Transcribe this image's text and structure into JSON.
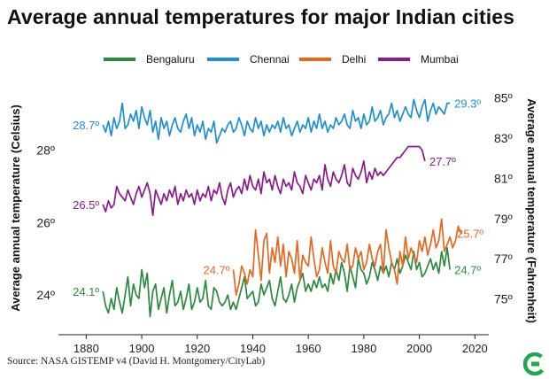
{
  "chart_data": {
    "type": "line",
    "title": "Average annual temperatures for major Indian cities",
    "xlabel": "",
    "ylabel": "Average annual temperature (Celsius)",
    "ylabel_right": "Average annual temperature (Fahrenheit)",
    "xlim": [
      1870,
      2025
    ],
    "ylim": [
      22.9,
      29.9
    ],
    "x_ticks": [
      1880,
      1900,
      1920,
      1940,
      1960,
      1980,
      2000,
      2020
    ],
    "x_tick_labels": [
      "1880",
      "1900",
      "1920",
      "1940",
      "1960",
      "1980",
      "2000",
      "2020"
    ],
    "y_ticks_left": [
      24,
      26,
      28
    ],
    "y_tick_labels_left": [
      "24º",
      "26º",
      "28º"
    ],
    "y_ticks_right_f": [
      75,
      77,
      79,
      81,
      83,
      85
    ],
    "y_tick_labels_right": [
      "75º",
      "77º",
      "79º",
      "81º",
      "83º",
      "85º"
    ],
    "legend_position": "top",
    "series": [
      {
        "name": "Bengaluru",
        "color": "#2a8a3e",
        "start_label": "24.1º",
        "end_label": "24.7º",
        "start_year": 1886,
        "values": [
          24.1,
          23.7,
          23.5,
          23.9,
          23.6,
          24.2,
          23.8,
          23.5,
          24.0,
          24.5,
          23.7,
          24.3,
          24.0,
          23.9,
          24.7,
          24.2,
          24.6,
          23.4,
          24.1,
          24.3,
          23.6,
          23.9,
          24.2,
          23.5,
          24.0,
          24.4,
          23.7,
          23.8,
          24.1,
          23.6,
          23.9,
          24.3,
          23.6,
          23.8,
          24.2,
          23.8,
          23.9,
          24.4,
          23.7,
          23.6,
          24.2,
          24.1,
          23.8,
          23.7,
          23.8,
          24.0,
          23.6,
          23.8,
          23.6,
          23.9,
          24.2,
          24.5,
          23.9,
          24.0,
          24.1,
          23.7,
          23.8,
          24.3,
          24.0,
          24.2,
          24.4,
          23.9,
          23.7,
          24.1,
          24.5,
          23.9,
          23.8,
          24.0,
          24.3,
          23.8,
          24.2,
          24.4,
          24.6,
          24.1,
          24.3,
          24.1,
          24.4,
          24.2,
          24.5,
          24.2,
          24.3,
          24.1,
          24.6,
          24.3,
          24.7,
          24.4,
          24.9,
          24.6,
          24.1,
          24.8,
          24.5,
          24.2,
          25.0,
          24.7,
          24.6,
          24.3,
          24.5,
          24.9,
          24.7,
          24.4,
          24.8,
          24.6,
          24.8,
          24.5,
          24.9,
          24.7,
          25.0,
          24.6,
          24.8,
          25.1,
          24.9,
          24.7,
          25.2,
          24.7,
          24.9,
          24.5,
          24.6,
          24.8,
          25.0,
          24.7,
          24.9,
          24.6,
          25.2,
          24.8,
          25.3,
          24.7
        ]
      },
      {
        "name": "Chennai",
        "color": "#1e8fd0",
        "start_label": "28.7º",
        "end_label": "29.3º",
        "start_year": 1886,
        "values": [
          28.7,
          28.5,
          28.8,
          28.4,
          28.9,
          28.6,
          28.8,
          29.3,
          28.6,
          28.7,
          29.0,
          28.8,
          29.1,
          28.6,
          29.2,
          28.9,
          28.7,
          29.1,
          28.5,
          28.8,
          28.3,
          28.9,
          28.6,
          28.8,
          28.4,
          28.7,
          28.9,
          28.6,
          28.5,
          28.8,
          29.0,
          28.6,
          28.9,
          28.4,
          28.7,
          28.5,
          28.8,
          28.3,
          28.6,
          28.5,
          28.8,
          28.2,
          28.4,
          28.6,
          28.5,
          28.7,
          28.8,
          28.5,
          28.6,
          28.9,
          28.7,
          28.4,
          28.8,
          28.6,
          28.5,
          28.9,
          28.6,
          28.8,
          28.4,
          28.7,
          28.5,
          28.7,
          28.6,
          28.8,
          28.5,
          28.9,
          28.6,
          28.7,
          28.4,
          28.6,
          28.8,
          28.5,
          28.7,
          28.6,
          28.9,
          28.5,
          28.8,
          28.6,
          29.0,
          28.6,
          28.8,
          28.5,
          28.7,
          28.6,
          28.9,
          28.7,
          28.8,
          29.0,
          28.7,
          28.6,
          29.1,
          28.8,
          28.9,
          28.6,
          29.0,
          28.7,
          28.8,
          29.2,
          28.8,
          28.9,
          29.1,
          28.7,
          28.9,
          29.0,
          29.3,
          28.9,
          29.1,
          28.8,
          29.0,
          29.2,
          29.0,
          28.9,
          29.4,
          29.1,
          28.9,
          29.2,
          29.4,
          28.8,
          29.1,
          29.3,
          29.0,
          29.2,
          29.1,
          29.0,
          29.3,
          29.3
        ]
      },
      {
        "name": "Delhi",
        "color": "#e8661e",
        "start_label": "24.7º",
        "end_label": "25.7º",
        "start_year": 1933,
        "values": [
          24.7,
          24.0,
          24.3,
          24.8,
          24.6,
          24.3,
          24.7,
          24.5,
          25.8,
          25.1,
          24.4,
          25.5,
          25.7,
          24.6,
          25.3,
          24.9,
          25.6,
          24.8,
          25.4,
          24.5,
          25.2,
          25.0,
          24.6,
          25.5,
          24.4,
          25.1,
          24.9,
          24.8,
          25.6,
          25.0,
          24.5,
          24.7,
          25.3,
          24.9,
          24.6,
          25.5,
          24.8,
          24.6,
          25.2,
          25.0,
          24.9,
          25.4,
          24.7,
          24.8,
          25.3,
          25.0,
          25.2,
          24.7,
          24.9,
          25.4,
          25.0,
          24.8,
          25.2,
          25.4,
          24.6,
          25.8,
          25.3,
          24.9,
          24.7,
          24.3,
          25.2,
          24.8,
          25.6,
          25.0,
          25.3,
          25.1,
          24.9,
          25.5,
          25.2,
          25.6,
          25.1,
          25.4,
          25.8,
          25.3,
          25.5,
          26.1,
          25.2,
          25.4,
          25.6,
          25.3,
          25.5,
          25.9,
          25.7
        ]
      },
      {
        "name": "Mumbai",
        "color": "#8b1a8b",
        "start_label": "26.5º",
        "end_label": "27.7º",
        "start_year": 1886,
        "values": [
          26.5,
          26.3,
          26.6,
          26.4,
          26.5,
          27.0,
          26.8,
          26.7,
          26.6,
          26.9,
          26.7,
          26.5,
          26.8,
          27.0,
          26.7,
          26.9,
          27.1,
          26.8,
          26.2,
          26.9,
          26.7,
          26.5,
          26.8,
          26.6,
          26.9,
          26.7,
          27.0,
          26.5,
          26.8,
          26.6,
          26.9,
          26.7,
          26.8,
          26.5,
          26.9,
          26.6,
          26.8,
          26.7,
          27.0,
          26.6,
          26.9,
          26.8,
          27.1,
          26.7,
          26.5,
          26.9,
          27.1,
          26.7,
          26.9,
          27.0,
          26.8,
          27.2,
          26.9,
          27.3,
          27.0,
          26.9,
          27.2,
          26.8,
          27.4,
          27.1,
          27.2,
          26.9,
          27.3,
          27.0,
          26.8,
          27.2,
          27.0,
          27.1,
          26.9,
          27.4,
          27.1,
          27.0,
          26.8,
          27.3,
          27.1,
          26.9,
          27.2,
          27.1,
          27.3,
          26.9,
          27.6,
          27.2,
          27.0,
          27.4,
          27.2,
          27.1,
          27.3,
          27.6,
          27.1,
          27.0,
          27.5,
          27.3,
          27.2,
          27.4,
          27.7,
          27.1,
          27.4,
          27.2,
          27.5,
          27.3,
          27.4,
          27.3,
          27.4,
          27.5,
          27.6,
          27.7,
          27.8,
          27.8,
          27.9,
          28.0,
          28.1,
          28.1,
          28.1,
          28.1,
          28.1,
          28.0,
          27.7
        ]
      }
    ]
  },
  "legend_title_items": [
    "Bengaluru",
    "Chennai",
    "Delhi",
    "Mumbai"
  ],
  "source": "Source: NASA GISTEMP v4 (David H. Montgomery/CityLab)",
  "logo_icon": "citylab-logo-icon"
}
